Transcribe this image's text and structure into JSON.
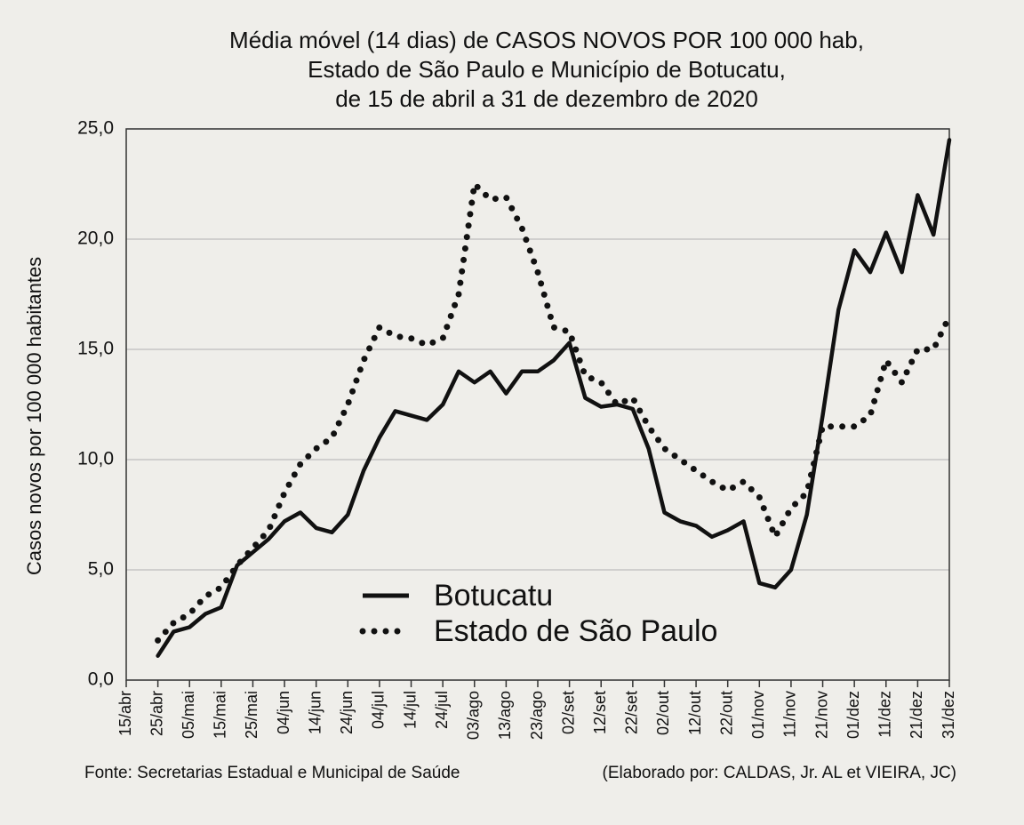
{
  "chart_data": {
    "type": "line",
    "title": [
      "Média móvel (14 dias) de CASOS NOVOS POR 100 000 hab,",
      "Estado de São Paulo e Município de Botucatu,",
      "de 15 de abril a 31 de dezembro de 2020"
    ],
    "y_label": "Casos novos por 100 000 habitantes",
    "categories": [
      "15/abr",
      null,
      "25/abr",
      null,
      "05/mai",
      null,
      "15/mai",
      null,
      "25/mai",
      null,
      "04/jun",
      null,
      "14/jun",
      null,
      "24/jun",
      null,
      "04/jul",
      null,
      "14/jul",
      null,
      "24/jul",
      null,
      "03/ago",
      null,
      "13/ago",
      null,
      "23/ago",
      null,
      "02/set",
      null,
      "12/set",
      null,
      "22/set",
      null,
      "02/out",
      null,
      "12/out",
      null,
      "22/out",
      null,
      "01/nov",
      null,
      "11/nov",
      null,
      "21/nov",
      null,
      "01/dez",
      null,
      "11/dez",
      null,
      "21/dez",
      null,
      "31/dez"
    ],
    "series": [
      {
        "name": "Botucatu",
        "color": "#111111",
        "style": "solid",
        "values": [
          null,
          null,
          1.1,
          2.2,
          2.4,
          3.0,
          3.3,
          5.2,
          5.8,
          6.4,
          7.2,
          7.6,
          6.9,
          6.7,
          7.5,
          9.5,
          11.0,
          12.2,
          12.0,
          11.8,
          12.5,
          14.0,
          13.5,
          14.0,
          13.0,
          14.0,
          14.0,
          14.5,
          15.3,
          12.8,
          12.4,
          12.5,
          12.3,
          10.5,
          7.6,
          7.2,
          7.0,
          6.5,
          6.8,
          7.2,
          4.4,
          4.2,
          5.0,
          7.5,
          12.0,
          16.8,
          19.5,
          18.5,
          20.3,
          18.5,
          22.0,
          20.2,
          24.5
        ]
      },
      {
        "name": "Estado de São Paulo",
        "color": "#111111",
        "style": "dotted",
        "values": [
          null,
          null,
          1.8,
          2.6,
          3.0,
          3.8,
          4.2,
          5.2,
          6.0,
          6.8,
          8.5,
          9.8,
          10.5,
          11.0,
          12.5,
          14.5,
          16.0,
          15.6,
          15.5,
          15.2,
          15.5,
          17.5,
          22.5,
          21.8,
          21.9,
          20.5,
          18.5,
          16.0,
          15.8,
          13.8,
          13.5,
          12.5,
          12.8,
          11.5,
          10.5,
          10.0,
          9.5,
          9.0,
          8.6,
          9.0,
          8.3,
          6.5,
          7.8,
          8.5,
          11.5,
          11.5,
          11.5,
          12.0,
          14.5,
          13.5,
          15.0,
          15.0,
          16.5
        ]
      }
    ],
    "ylim": [
      0,
      25
    ],
    "yticks": [
      {
        "value": 0,
        "label": "0,0"
      },
      {
        "value": 5,
        "label": "5,0"
      },
      {
        "value": 10,
        "label": "10,0"
      },
      {
        "value": 15,
        "label": "15,0"
      },
      {
        "value": 20,
        "label": "20,0"
      },
      {
        "value": 25,
        "label": "25,0"
      }
    ],
    "grid": true,
    "source": "Fonte: Secretarias Estadual e Municipal de Saúde",
    "credit": "(Elaborado por: CALDAS, Jr. AL et VIEIRA, JC)"
  }
}
